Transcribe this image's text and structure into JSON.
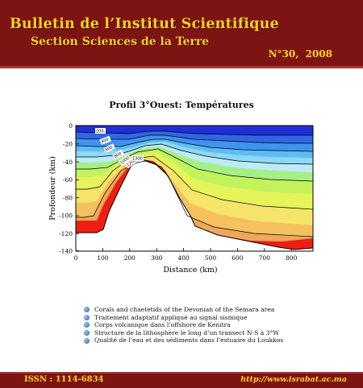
{
  "header": {
    "title": "Bulletin de l’Institut Scientifique",
    "subtitle": "Section Sciences de la Terre",
    "issue": "N°30,  2008"
  },
  "figure": {
    "title": "Profil 3°Ouest: Températures",
    "xlabel": "Distance (km)",
    "ylabel": "Profondeur (km)",
    "x_ticks": [
      "0",
      "100",
      "200",
      "300",
      "400",
      "500",
      "600",
      "700",
      "800"
    ],
    "y_ticks": [
      "0",
      "-20",
      "-40",
      "-60",
      "-80",
      "-100",
      "-120",
      "-140"
    ],
    "contour_labels": [
      "200",
      "400",
      "600",
      "800",
      "1000",
      "1200",
      "1300"
    ]
  },
  "chart_data": {
    "type": "heatmap",
    "title": "Profil 3°Ouest: Températures",
    "xlabel": "Distance (km)",
    "ylabel": "Profondeur (km)",
    "xlim": [
      0,
      880
    ],
    "ylim": [
      -140,
      0
    ],
    "grid": false,
    "contour_labels": [
      200,
      400,
      600,
      800,
      1000,
      1200,
      1300
    ],
    "colors": [
      "#1f2fd6",
      "#2f66e8",
      "#3f93ef",
      "#5cbcf3",
      "#8ed8f6",
      "#bdebf5",
      "#a6ef88",
      "#c3f25d",
      "#e4f45a",
      "#f6e56a",
      "#f5c05e",
      "#eea75b",
      "#ee1e14"
    ]
  },
  "articles": [
    "Corals and chaetetids of the Devonian of the Semara area",
    "Traitement adaptatif appliqué au signal sismique",
    "Corps volcanique dans l’offshore de Kenitra",
    "Structure de la lithosphère le long d’un transect N-S à 3°W",
    "Qualité de l’eau et des sédiments dans l’estuaire du Loukkos"
  ],
  "footer": {
    "issn": "ISSN : 1114-6834",
    "url": "http://www.israbat.ac.ma"
  }
}
